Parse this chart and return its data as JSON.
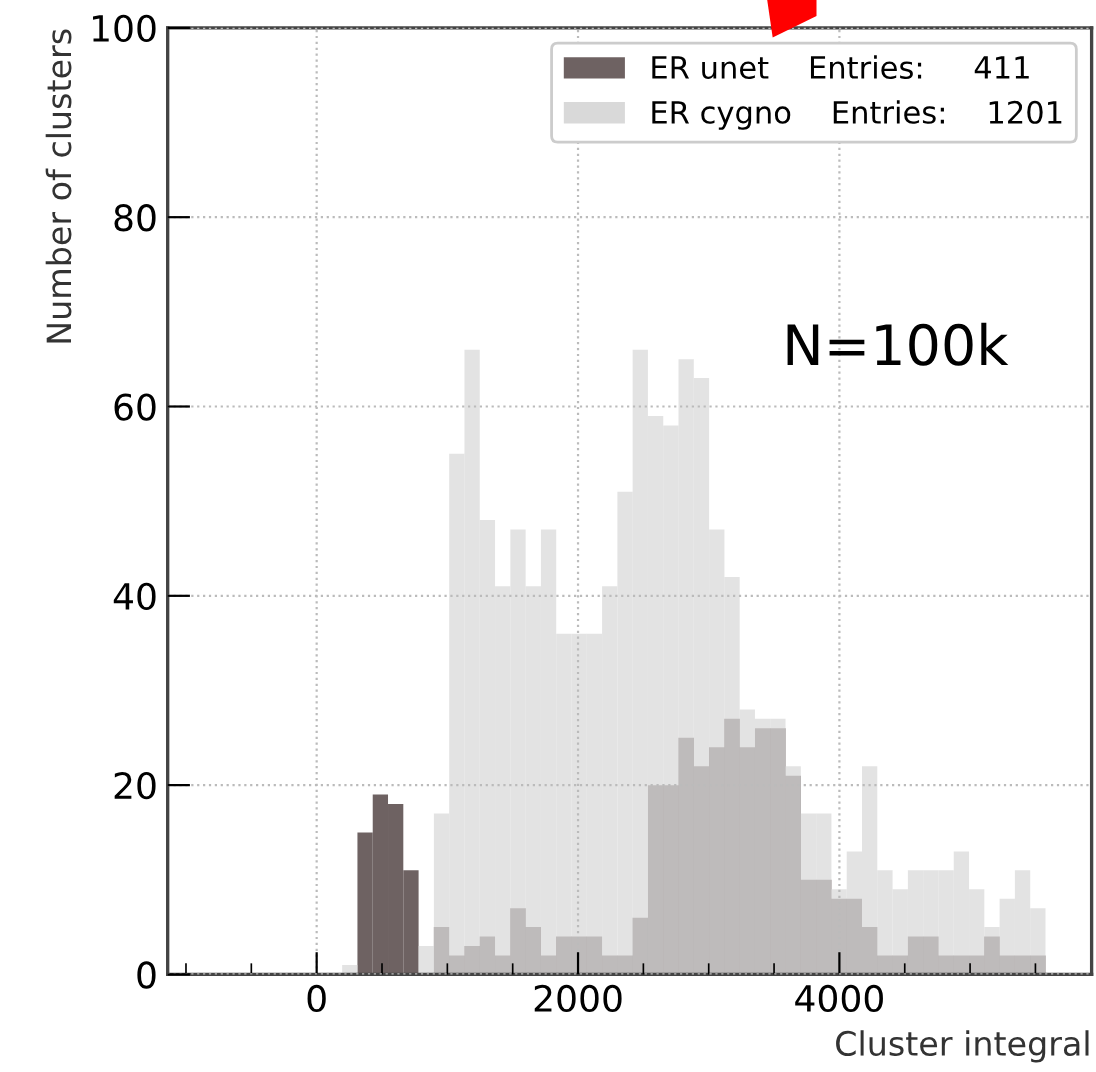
{
  "chart_data": {
    "type": "histogram",
    "xlabel": "Cluster integral",
    "ylabel": "Number of clusters",
    "bins": [
      195,
      312,
      429,
      546,
      663,
      780,
      897,
      1014,
      1131,
      1248,
      1365,
      1482,
      1599,
      1716,
      1833,
      1950,
      2067,
      2184,
      2301,
      2418,
      2535,
      2652,
      2769,
      2886,
      3003,
      3120,
      3237,
      3354,
      3471,
      3588,
      3705,
      3822,
      3939,
      4056,
      4173,
      4290,
      4407,
      4524,
      4641,
      4758,
      4875,
      4992,
      5109,
      5226,
      5343,
      5460,
      5577
    ],
    "series": [
      {
        "name": "ER unet    Entries:     411",
        "color": "#6e6262",
        "values": [
          0,
          15,
          19,
          18,
          11,
          0,
          5,
          2,
          3,
          4,
          2,
          7,
          5,
          2,
          4,
          4,
          4,
          2,
          2,
          6,
          20,
          20,
          25,
          22,
          24,
          27,
          24,
          26,
          26,
          21,
          10,
          10,
          8,
          8,
          5,
          2,
          2,
          4,
          4,
          2,
          2,
          2,
          4,
          2,
          2,
          2
        ]
      },
      {
        "name": "ER cygno    Entries:    1201",
        "color": "#d9d9d9",
        "values": [
          1,
          0,
          0,
          0,
          0,
          3,
          17,
          55,
          66,
          48,
          41,
          47,
          41,
          47,
          36,
          36,
          36,
          41,
          51,
          66,
          59,
          58,
          65,
          63,
          47,
          42,
          28,
          27,
          27,
          22,
          17,
          17,
          9,
          13,
          22,
          11,
          9,
          11,
          11,
          11,
          13,
          9,
          5,
          8,
          11,
          7
        ]
      }
    ],
    "xlim": [
      -1140,
      5930
    ],
    "xticks": [
      {
        "value": -1000,
        "label": null
      },
      {
        "value": -500,
        "label": null
      },
      0,
      {
        "value": 500,
        "label": null
      },
      {
        "value": 1000,
        "label": null
      },
      {
        "value": 1500,
        "label": null
      },
      2000,
      {
        "value": 2500,
        "label": null
      },
      {
        "value": 3000,
        "label": null
      },
      {
        "value": 3500,
        "label": null
      },
      4000,
      {
        "value": 4500,
        "label": null
      },
      {
        "value": 5000,
        "label": null
      },
      {
        "value": 5500,
        "label": null
      }
    ],
    "ylim": [
      0,
      100
    ],
    "yticks": [
      0,
      20,
      40,
      60,
      80,
      100
    ],
    "grid": true,
    "legend": "top right",
    "annotations": [
      "N=100k"
    ]
  }
}
